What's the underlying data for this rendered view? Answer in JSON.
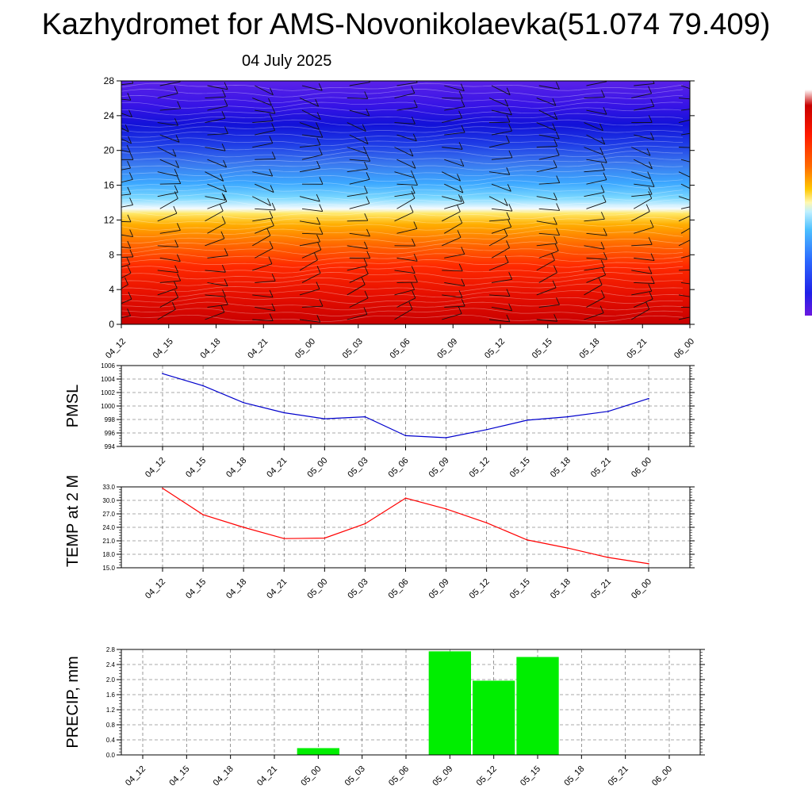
{
  "header": {
    "title": "Kazhydromet for AMS-Novonikolaevka(51.074 79.409)",
    "date": "04 July 2025"
  },
  "time_labels": [
    "04_12",
    "04_15",
    "04_18",
    "04_21",
    "05_00",
    "05_03",
    "05_06",
    "05_09",
    "05_12",
    "05_15",
    "05_18",
    "05_21",
    "06_00"
  ],
  "chart_data": [
    {
      "type": "heatmap",
      "title": "",
      "ylabel": "",
      "ylim": [
        0,
        28
      ],
      "yticks": [
        "0",
        "4",
        "8",
        "12",
        "16",
        "20",
        "24",
        "28"
      ],
      "x": [
        "04_12",
        "04_15",
        "04_18",
        "04_21",
        "05_00",
        "05_03",
        "05_06",
        "05_09",
        "05_12",
        "05_15",
        "05_18",
        "05_21",
        "06_00"
      ],
      "colorbar_colors": [
        "#ffffff",
        "#ff2020",
        "#d40000",
        "#ff8a00",
        "#ffe24a",
        "#ffffff",
        "#64d8ff",
        "#2c6cff",
        "#1a14e0",
        "#5a0ae8"
      ],
      "freezing_level_approx": 13,
      "overlay": "wind barbs"
    },
    {
      "type": "line",
      "ylabel": "PMSL",
      "ylim": [
        994,
        1006
      ],
      "yticks": [
        "994",
        "996",
        "998",
        "1000",
        "1002",
        "1004",
        "1006"
      ],
      "x": [
        "04_12",
        "04_15",
        "04_18",
        "04_21",
        "05_00",
        "05_03",
        "05_06",
        "05_09",
        "05_12",
        "05_15",
        "05_18",
        "05_21",
        "06_00"
      ],
      "values": [
        1004.8,
        1003.0,
        1000.5,
        999.0,
        998.1,
        998.4,
        995.6,
        995.3,
        996.5,
        997.9,
        998.4,
        999.2,
        1001.1
      ],
      "color": "#0000cc"
    },
    {
      "type": "line",
      "ylabel": "TEMP at 2 M",
      "ylim": [
        15,
        33
      ],
      "yticks": [
        "15.0",
        "18.0",
        "21.0",
        "24.0",
        "27.0",
        "30.0",
        "33.0"
      ],
      "x": [
        "04_12",
        "04_15",
        "04_18",
        "04_21",
        "05_00",
        "05_03",
        "05_06",
        "05_09",
        "05_12",
        "05_15",
        "05_18",
        "05_21",
        "06_00"
      ],
      "values": [
        32.7,
        26.8,
        24.0,
        21.5,
        21.6,
        24.8,
        30.5,
        28.1,
        25.0,
        21.2,
        19.4,
        17.3,
        15.9
      ],
      "color": "#ff0000"
    },
    {
      "type": "bar",
      "ylabel": "PRECIP, mm",
      "ylim": [
        0,
        2.8
      ],
      "yticks": [
        "0.0",
        "0.4",
        "0.8",
        "1.2",
        "1.6",
        "2.0",
        "2.4",
        "2.8"
      ],
      "categories": [
        "04_12",
        "04_15",
        "04_18",
        "04_21",
        "05_00",
        "05_03",
        "05_06",
        "05_09",
        "05_12",
        "05_15",
        "05_18",
        "05_21",
        "06_00"
      ],
      "values": [
        0,
        0,
        0,
        0,
        0.18,
        0,
        0,
        2.75,
        1.97,
        2.6,
        0,
        0,
        0
      ],
      "color": "#00ee00"
    }
  ]
}
